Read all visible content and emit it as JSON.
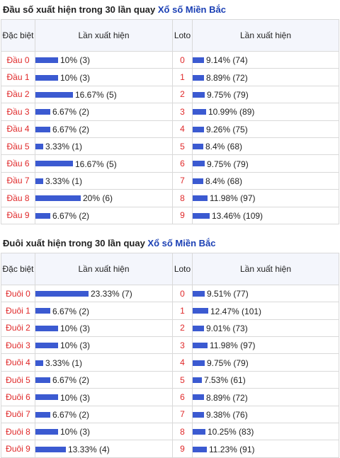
{
  "sections": [
    {
      "title_prefix": "Đầu số xuất hiện trong 30 lần quay ",
      "title_link": "Xổ số Miền Bắc",
      "header": {
        "special": "Đặc biệt",
        "count": "Lần xuất hiện",
        "loto": "Loto",
        "loto_count": "Lần xuất hiện"
      },
      "rows": [
        {
          "label": "Đầu 0",
          "special_text": "10% (3)",
          "special_pct": 10,
          "loto": "0",
          "loto_text": "9.14% (74)",
          "loto_pct": 9.14
        },
        {
          "label": "Đầu 1",
          "special_text": "10% (3)",
          "special_pct": 10,
          "loto": "1",
          "loto_text": "8.89% (72)",
          "loto_pct": 8.89
        },
        {
          "label": "Đầu 2",
          "special_text": "16.67% (5)",
          "special_pct": 16.67,
          "loto": "2",
          "loto_text": "9.75% (79)",
          "loto_pct": 9.75
        },
        {
          "label": "Đầu 3",
          "special_text": "6.67% (2)",
          "special_pct": 6.67,
          "loto": "3",
          "loto_text": "10.99% (89)",
          "loto_pct": 10.99
        },
        {
          "label": "Đầu 4",
          "special_text": "6.67% (2)",
          "special_pct": 6.67,
          "loto": "4",
          "loto_text": "9.26% (75)",
          "loto_pct": 9.26
        },
        {
          "label": "Đầu 5",
          "special_text": "3.33% (1)",
          "special_pct": 3.33,
          "loto": "5",
          "loto_text": "8.4% (68)",
          "loto_pct": 8.4
        },
        {
          "label": "Đầu 6",
          "special_text": "16.67% (5)",
          "special_pct": 16.67,
          "loto": "6",
          "loto_text": "9.75% (79)",
          "loto_pct": 9.75
        },
        {
          "label": "Đầu 7",
          "special_text": "3.33% (1)",
          "special_pct": 3.33,
          "loto": "7",
          "loto_text": "8.4% (68)",
          "loto_pct": 8.4
        },
        {
          "label": "Đầu 8",
          "special_text": "20% (6)",
          "special_pct": 20,
          "loto": "8",
          "loto_text": "11.98% (97)",
          "loto_pct": 11.98
        },
        {
          "label": "Đầu 9",
          "special_text": "6.67% (2)",
          "special_pct": 6.67,
          "loto": "9",
          "loto_text": "13.46% (109)",
          "loto_pct": 13.46
        }
      ]
    },
    {
      "title_prefix": "Đuôi xuất hiện trong 30 lần quay ",
      "title_link": "Xổ số Miền Bắc",
      "header": {
        "special": "Đặc biệt",
        "count": "Lần xuất hiện",
        "loto": "Loto",
        "loto_count": "Lần xuất hiện"
      },
      "rows": [
        {
          "label": "Đuôi 0",
          "special_text": "23.33% (7)",
          "special_pct": 23.33,
          "loto": "0",
          "loto_text": "9.51% (77)",
          "loto_pct": 9.51
        },
        {
          "label": "Đuôi 1",
          "special_text": "6.67% (2)",
          "special_pct": 6.67,
          "loto": "1",
          "loto_text": "12.47% (101)",
          "loto_pct": 12.47
        },
        {
          "label": "Đuôi 2",
          "special_text": "10% (3)",
          "special_pct": 10,
          "loto": "2",
          "loto_text": "9.01% (73)",
          "loto_pct": 9.01
        },
        {
          "label": "Đuôi 3",
          "special_text": "10% (3)",
          "special_pct": 10,
          "loto": "3",
          "loto_text": "11.98% (97)",
          "loto_pct": 11.98
        },
        {
          "label": "Đuôi 4",
          "special_text": "3.33% (1)",
          "special_pct": 3.33,
          "loto": "4",
          "loto_text": "9.75% (79)",
          "loto_pct": 9.75
        },
        {
          "label": "Đuôi 5",
          "special_text": "6.67% (2)",
          "special_pct": 6.67,
          "loto": "5",
          "loto_text": "7.53% (61)",
          "loto_pct": 7.53
        },
        {
          "label": "Đuôi 6",
          "special_text": "10% (3)",
          "special_pct": 10,
          "loto": "6",
          "loto_text": "8.89% (72)",
          "loto_pct": 8.89
        },
        {
          "label": "Đuôi 7",
          "special_text": "6.67% (2)",
          "special_pct": 6.67,
          "loto": "7",
          "loto_text": "9.38% (76)",
          "loto_pct": 9.38
        },
        {
          "label": "Đuôi 8",
          "special_text": "10% (3)",
          "special_pct": 10,
          "loto": "8",
          "loto_text": "10.25% (83)",
          "loto_pct": 10.25
        },
        {
          "label": "Đuôi 9",
          "special_text": "13.33% (4)",
          "special_pct": 13.33,
          "loto": "9",
          "loto_text": "11.23% (91)",
          "loto_pct": 11.23
        }
      ]
    }
  ],
  "colors": {
    "bar": "#3b5ad1",
    "label_red": "#e0292a",
    "link_blue": "#1a3fb4",
    "header_bg": "#f4f6fc"
  }
}
